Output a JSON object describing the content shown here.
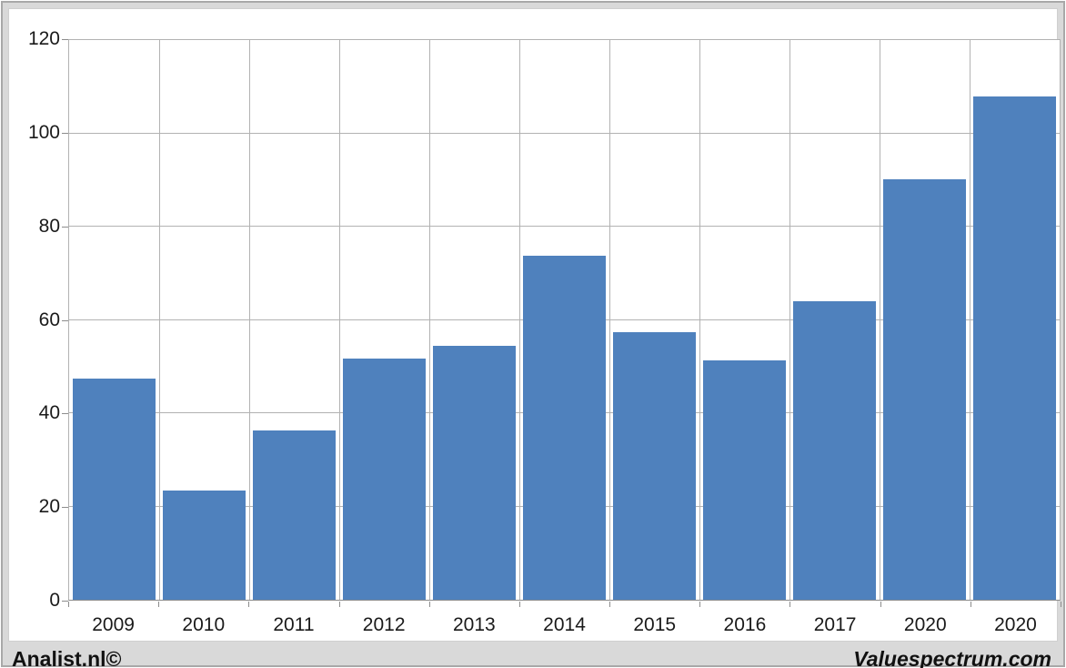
{
  "chart_data": {
    "type": "bar",
    "categories": [
      "2009",
      "2010",
      "2011",
      "2012",
      "2013",
      "2014",
      "2015",
      "2016",
      "2017",
      "2020",
      "2020"
    ],
    "values": [
      47.5,
      23.5,
      36.3,
      51.8,
      54.4,
      73.8,
      57.4,
      51.3,
      64.1,
      90.2,
      108
    ],
    "title": "",
    "xlabel": "",
    "ylabel": "",
    "ylim": [
      0,
      120
    ],
    "yticks": [
      0,
      20,
      40,
      60,
      80,
      100,
      120
    ],
    "grid": true,
    "grid_vertical": true,
    "legend": "none",
    "bar_color": "#4f81bd"
  },
  "footer": {
    "left": "Analist.nl©",
    "right": "Valuespectrum.com"
  },
  "colors": {
    "bar": "#4f81bd",
    "frame_background": "#d9d9d9",
    "frame_border": "#a8a8a8",
    "gridline": "#b2b2b2",
    "axis": "#8c8c8c",
    "label_text": "#1a1a1a"
  }
}
